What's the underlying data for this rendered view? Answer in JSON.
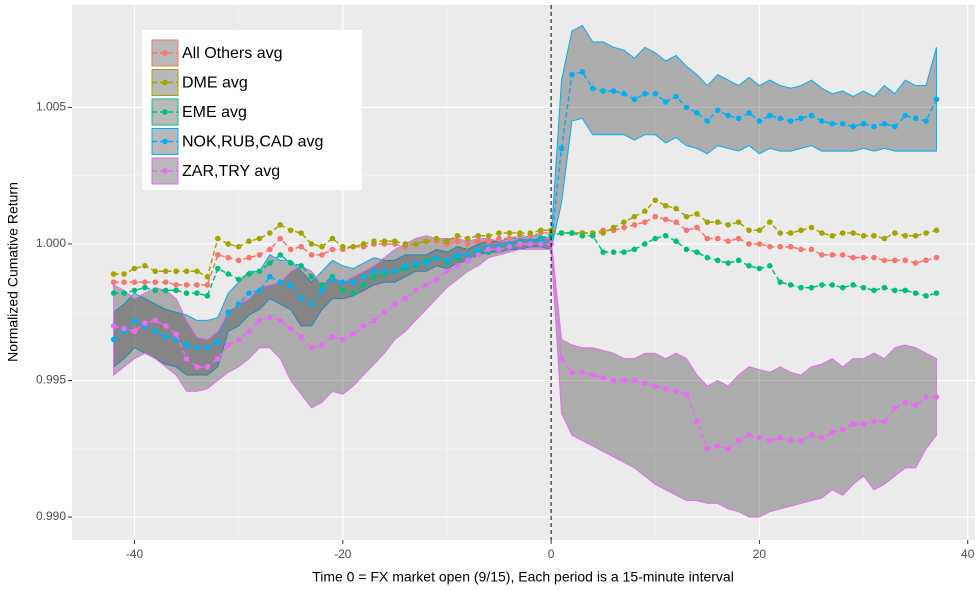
{
  "chart_data": {
    "type": "line",
    "xlabel": "Time 0 = FX market open (9/15), Each period is a 15-minute interval",
    "ylabel": "Normalized Cumative Return",
    "x": [
      -42,
      -41,
      -40,
      -39,
      -38,
      -37,
      -36,
      -35,
      -34,
      -33,
      -32,
      -31,
      -30,
      -29,
      -28,
      -27,
      -26,
      -25,
      -24,
      -23,
      -22,
      -21,
      -20,
      -19,
      -18,
      -17,
      -16,
      -15,
      -14,
      -13,
      -12,
      -11,
      -10,
      -9,
      -8,
      -7,
      -6,
      -5,
      -4,
      -3,
      -2,
      -1,
      0,
      1,
      2,
      3,
      4,
      5,
      6,
      7,
      8,
      9,
      10,
      11,
      12,
      13,
      14,
      15,
      16,
      17,
      18,
      19,
      20,
      21,
      22,
      23,
      24,
      25,
      26,
      27,
      28,
      29,
      30,
      31,
      32,
      33,
      34,
      35,
      36,
      37
    ],
    "xlim": [
      -46,
      40.7
    ],
    "ylim": [
      0.98916,
      1.00875
    ],
    "xticks": [
      -40,
      -20,
      0,
      20,
      40
    ],
    "xticks_minor": [
      -30,
      -10,
      10,
      30
    ],
    "yticks": [
      {
        "value": 0.99,
        "label": "0.990"
      },
      0.995,
      {
        "value": 1,
        "label": "1.000"
      },
      1.005
    ],
    "yticks_minor": [
      0.9925,
      0.9975,
      1.0025,
      1.0075
    ],
    "vline": 0,
    "grid": true,
    "legend": "top-left",
    "series": [
      {
        "name": "All Others avg",
        "color": "#F8766D",
        "values": [
          0.9986,
          0.9986,
          0.9986,
          0.9986,
          0.9986,
          0.9986,
          0.9985,
          0.9985,
          0.9985,
          0.9985,
          0.9996,
          0.9995,
          0.9994,
          0.9995,
          0.9996,
          0.9998,
          1.0002,
          0.9998,
          0.9999,
          0.9996,
          0.9996,
          0.9998,
          0.9998,
          0.9999,
          0.9999,
          1.0,
          1.0,
          1.0,
          0.9999,
          1.0,
          1.0001,
          1.0001,
          1.0,
          1.0001,
          1.0,
          1.0001,
          1.0001,
          1.0002,
          1.0002,
          1.0003,
          1.0003,
          1.0004,
          1.0004,
          1.0004,
          1.0004,
          1.0004,
          1.0004,
          1.0005,
          1.0005,
          1.0006,
          1.0007,
          1.0008,
          1.001,
          1.0009,
          1.0008,
          1.0005,
          1.0006,
          1.0002,
          1.0002,
          1.0001,
          1.0002,
          1.0,
          1.0,
          0.9999,
          0.9999,
          0.9999,
          0.9998,
          0.9998,
          0.9996,
          0.9996,
          0.9996,
          0.9995,
          0.9995,
          0.9995,
          0.9994,
          0.9994,
          0.9994,
          0.9993,
          0.9994,
          0.9995
        ]
      },
      {
        "name": "DME avg",
        "color": "#A3A500",
        "values": [
          0.9989,
          0.9989,
          0.9991,
          0.9992,
          0.999,
          0.999,
          0.999,
          0.999,
          0.999,
          0.9988,
          1.0002,
          1.0,
          0.9999,
          1.0001,
          1.0002,
          1.0004,
          1.0007,
          1.0005,
          1.0004,
          1.0,
          0.9999,
          1.0002,
          0.9999,
          0.9999,
          1.0,
          1.0001,
          1.0001,
          1.0001,
          1.0,
          1.0,
          1.0001,
          1.0002,
          1.0001,
          1.0003,
          1.0002,
          1.0003,
          1.0003,
          1.0004,
          1.0004,
          1.0004,
          1.0004,
          1.0005,
          1.0005,
          1.0004,
          1.0004,
          1.0004,
          1.0004,
          1.0004,
          1.0006,
          1.0008,
          1.001,
          1.0012,
          1.0016,
          1.0014,
          1.0013,
          1.001,
          1.0011,
          1.0008,
          1.0008,
          1.0007,
          1.0008,
          1.0005,
          1.0005,
          1.0008,
          1.0004,
          1.0004,
          1.0005,
          1.0006,
          1.0004,
          1.0003,
          1.0004,
          1.0004,
          1.0003,
          1.0003,
          1.0002,
          1.0004,
          1.0003,
          1.0003,
          1.0004,
          1.0005
        ]
      },
      {
        "name": "EME avg",
        "color": "#00BF7D",
        "values": [
          0.9982,
          0.9982,
          0.9983,
          0.9984,
          0.9983,
          0.9983,
          0.9983,
          0.9982,
          0.9982,
          0.9981,
          0.9991,
          0.9989,
          0.9987,
          0.9989,
          0.999,
          0.9993,
          0.9996,
          0.9993,
          0.9992,
          0.9988,
          0.9985,
          0.9988,
          0.9983,
          0.9982,
          0.9985,
          0.9988,
          0.9989,
          0.999,
          0.9991,
          0.9992,
          0.9994,
          0.9995,
          0.9993,
          0.9995,
          0.9994,
          0.9997,
          0.9997,
          0.9999,
          1.0,
          1.0001,
          1.0001,
          1.0002,
          1.0003,
          1.0004,
          1.0004,
          1.0003,
          1.0003,
          0.9997,
          0.9997,
          0.9997,
          0.9998,
          1.0,
          1.0002,
          1.0003,
          1.0001,
          0.9998,
          0.9997,
          0.9995,
          0.9994,
          0.9993,
          0.9994,
          0.9992,
          0.9991,
          0.9992,
          0.9986,
          0.9985,
          0.9984,
          0.9984,
          0.9985,
          0.9985,
          0.9984,
          0.9985,
          0.9984,
          0.9983,
          0.9984,
          0.9983,
          0.9983,
          0.9982,
          0.9981,
          0.9982
        ]
      },
      {
        "name": "NOK,RUB,CAD avg",
        "color": "#00B0F6",
        "values": [
          0.9965,
          0.9968,
          0.9972,
          0.997,
          0.9968,
          0.9966,
          0.9965,
          0.9963,
          0.9962,
          0.9962,
          0.9964,
          0.9975,
          0.9978,
          0.9982,
          0.9983,
          0.9988,
          0.9986,
          0.9985,
          0.998,
          0.9978,
          0.9983,
          0.9987,
          0.9986,
          0.9986,
          0.9988,
          0.999,
          0.999,
          0.999,
          0.9992,
          0.9993,
          0.9993,
          0.9995,
          0.9994,
          0.9996,
          0.9996,
          0.9998,
          0.9999,
          0.9999,
          1.0,
          1.0,
          1.0001,
          1.0001,
          1.0,
          1.0035,
          1.0062,
          1.0063,
          1.0057,
          1.0056,
          1.0056,
          1.0055,
          1.0053,
          1.0055,
          1.0055,
          1.0052,
          1.0054,
          1.005,
          1.0048,
          1.0045,
          1.0049,
          1.0047,
          1.0046,
          1.0048,
          1.0045,
          1.0047,
          1.0046,
          1.0045,
          1.0046,
          1.0047,
          1.0045,
          1.0044,
          1.0044,
          1.0043,
          1.0044,
          1.0043,
          1.0044,
          1.0043,
          1.0047,
          1.0046,
          1.0045,
          1.0053
        ],
        "lower": [
          0.9955,
          0.9958,
          0.9962,
          0.996,
          0.9958,
          0.9956,
          0.9955,
          0.9952,
          0.9952,
          0.9952,
          0.9955,
          0.9968,
          0.997,
          0.9974,
          0.9976,
          0.998,
          0.9978,
          0.9976,
          0.997,
          0.997,
          0.9976,
          0.998,
          0.998,
          0.9981,
          0.9983,
          0.9985,
          0.9986,
          0.9986,
          0.9988,
          0.999,
          0.999,
          0.9992,
          0.9991,
          0.9993,
          0.9994,
          0.9996,
          0.9997,
          0.9997,
          0.9998,
          0.9998,
          0.9999,
          0.9999,
          0.9998,
          1.0015,
          1.0045,
          1.0046,
          1.004,
          1.004,
          1.004,
          1.004,
          1.0038,
          1.004,
          1.004,
          1.0037,
          1.0039,
          1.0036,
          1.0035,
          1.0033,
          1.0036,
          1.0035,
          1.0034,
          1.0036,
          1.0033,
          1.0035,
          1.0034,
          1.0034,
          1.0035,
          1.0036,
          1.0034,
          1.0034,
          1.0034,
          1.0034,
          1.0035,
          1.0034,
          1.0035,
          1.0034,
          1.0034,
          1.0034,
          1.0034,
          1.0034
        ],
        "upper": [
          0.9975,
          0.9978,
          0.9982,
          0.998,
          0.9978,
          0.9976,
          0.9975,
          0.9974,
          0.9972,
          0.9972,
          0.9973,
          0.9982,
          0.9986,
          0.999,
          0.999,
          0.9996,
          0.9994,
          0.9994,
          0.999,
          0.9986,
          0.999,
          0.9994,
          0.9992,
          0.9991,
          0.9993,
          0.9995,
          0.9994,
          0.9994,
          0.9996,
          0.9996,
          0.9996,
          0.9998,
          0.9997,
          0.9999,
          0.9998,
          1.0,
          1.0001,
          1.0001,
          1.0002,
          1.0002,
          1.0003,
          1.0003,
          1.0002,
          1.006,
          1.0078,
          1.008,
          1.0074,
          1.0074,
          1.0072,
          1.0071,
          1.0068,
          1.0072,
          1.007,
          1.0067,
          1.0069,
          1.0065,
          1.0062,
          1.0058,
          1.0062,
          1.006,
          1.0058,
          1.0061,
          1.0058,
          1.006,
          1.0058,
          1.0057,
          1.0058,
          1.006,
          1.0057,
          1.0055,
          1.0056,
          1.0054,
          1.0056,
          1.0054,
          1.0058,
          1.0055,
          1.006,
          1.0058,
          1.0058,
          1.0072
        ]
      },
      {
        "name": "ZAR,TRY avg",
        "color": "#E76BF3",
        "values": [
          0.997,
          0.9969,
          0.9968,
          0.9971,
          0.9972,
          0.997,
          0.9967,
          0.9958,
          0.9955,
          0.9955,
          0.9958,
          0.9963,
          0.9965,
          0.9968,
          0.9972,
          0.9973,
          0.9972,
          0.9969,
          0.9966,
          0.9962,
          0.9963,
          0.9966,
          0.9965,
          0.9967,
          0.997,
          0.9972,
          0.9975,
          0.9978,
          0.998,
          0.9983,
          0.9985,
          0.9987,
          0.999,
          0.9992,
          0.9994,
          0.9996,
          0.9998,
          0.9998,
          0.9999,
          1.0,
          1.0,
          1.0,
          1.0,
          0.9958,
          0.9953,
          0.9953,
          0.9952,
          0.9951,
          0.995,
          0.995,
          0.995,
          0.9949,
          0.9948,
          0.9947,
          0.9946,
          0.9945,
          0.9935,
          0.9925,
          0.9926,
          0.9925,
          0.9928,
          0.993,
          0.9929,
          0.9928,
          0.9929,
          0.9928,
          0.9928,
          0.993,
          0.9929,
          0.9931,
          0.9932,
          0.9934,
          0.9934,
          0.9935,
          0.9935,
          0.994,
          0.9942,
          0.9941,
          0.9944,
          0.9944
        ],
        "lower": [
          0.9952,
          0.9955,
          0.9958,
          0.996,
          0.9958,
          0.9955,
          0.9952,
          0.9946,
          0.9946,
          0.9947,
          0.995,
          0.9953,
          0.9955,
          0.9958,
          0.9962,
          0.9962,
          0.9958,
          0.995,
          0.9945,
          0.994,
          0.9942,
          0.9946,
          0.9945,
          0.9948,
          0.9952,
          0.9956,
          0.996,
          0.9965,
          0.9968,
          0.9972,
          0.9976,
          0.998,
          0.9984,
          0.9987,
          0.999,
          0.9992,
          0.9995,
          0.9996,
          0.9997,
          0.9998,
          0.9998,
          0.9998,
          0.9998,
          0.9938,
          0.993,
          0.9928,
          0.9926,
          0.9924,
          0.9922,
          0.992,
          0.9918,
          0.9915,
          0.9912,
          0.991,
          0.9908,
          0.9906,
          0.9906,
          0.9905,
          0.9905,
          0.9903,
          0.9902,
          0.99,
          0.99,
          0.9902,
          0.9903,
          0.9904,
          0.9905,
          0.9906,
          0.9907,
          0.991,
          0.9908,
          0.9912,
          0.9915,
          0.991,
          0.9912,
          0.9915,
          0.9918,
          0.9918,
          0.9925,
          0.993
        ],
        "upper": [
          0.9985,
          0.9983,
          0.998,
          0.9982,
          0.9984,
          0.9983,
          0.998,
          0.9972,
          0.9966,
          0.9965,
          0.9968,
          0.9975,
          0.9978,
          0.998,
          0.9984,
          0.9985,
          0.9986,
          0.999,
          0.9992,
          0.999,
          0.9985,
          0.9988,
          0.9986,
          0.9988,
          0.999,
          0.9992,
          0.9995,
          0.9998,
          1.0,
          1.0002,
          1.0003,
          1.0002,
          1.0002,
          1.0002,
          1.0001,
          1.0002,
          1.0002,
          1.0001,
          1.0001,
          1.0002,
          1.0002,
          1.0002,
          1.0002,
          0.9965,
          0.9963,
          0.9962,
          0.9962,
          0.9961,
          0.996,
          0.9958,
          0.9958,
          0.996,
          0.996,
          0.9958,
          0.996,
          0.9958,
          0.9952,
          0.9948,
          0.995,
          0.9948,
          0.9952,
          0.9955,
          0.9954,
          0.9953,
          0.9955,
          0.9953,
          0.9952,
          0.9955,
          0.9956,
          0.9958,
          0.9955,
          0.9958,
          0.9958,
          0.996,
          0.9958,
          0.9962,
          0.9963,
          0.9962,
          0.996,
          0.9958
        ]
      }
    ]
  }
}
